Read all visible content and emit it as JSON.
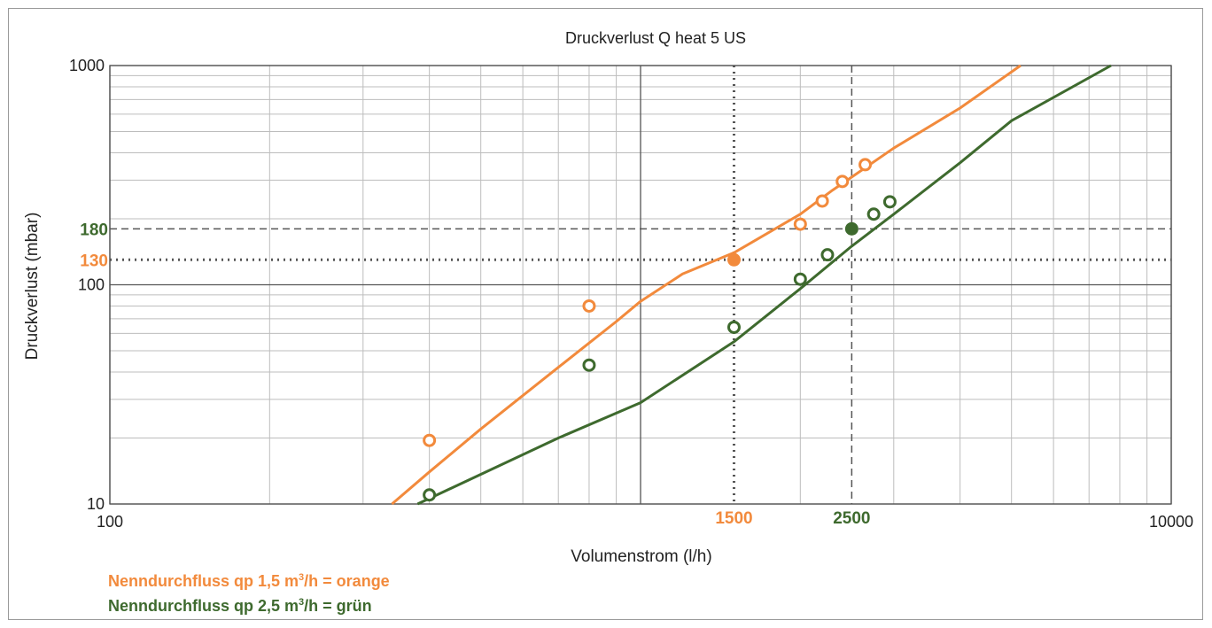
{
  "chart_data": {
    "type": "line",
    "title": "Druckverlust Q heat 5 US",
    "xlabel": "Volumenstrom (l/h)",
    "ylabel": "Druckverlust (mbar)",
    "x_scale": "log",
    "y_scale": "log",
    "xlim": [
      100,
      10000
    ],
    "ylim": [
      10,
      1000
    ],
    "x_ticks": [
      "100",
      "10000"
    ],
    "y_ticks": [
      "10",
      "100",
      "1000"
    ],
    "grid": true,
    "series": [
      {
        "name": "Nenndurchfluss qp 1,5 m³/h",
        "color": "#f28a3c",
        "curve_x": [
          340,
          400,
          500,
          700,
          900,
          1000,
          1200,
          1500,
          2000,
          2300,
          2500,
          3000,
          4000,
          5200
        ],
        "curve_y": [
          10,
          14,
          22,
          42,
          68,
          84,
          112,
          140,
          210,
          270,
          310,
          420,
          640,
          1000
        ],
        "points_x": [
          400,
          800,
          1500,
          2000,
          2200,
          2400,
          2650
        ],
        "points_y": [
          19.5,
          80,
          130,
          189,
          241,
          296,
          353
        ]
      },
      {
        "name": "Nenndurchfluss qp 2,5 m³/h",
        "color": "#3e6a2e",
        "curve_x": [
          380,
          700,
          1000,
          1500,
          2000,
          2500,
          3000,
          4000,
          5000,
          7700
        ],
        "curve_y": [
          10,
          20,
          29,
          55,
          96,
          150,
          210,
          360,
          560,
          1000
        ],
        "points_x": [
          400,
          800,
          1500,
          2000,
          2250,
          2500,
          2750,
          2950
        ],
        "points_y": [
          11,
          43,
          64,
          106,
          137,
          180,
          210,
          239
        ]
      }
    ],
    "reference_lines": {
      "x": [
        {
          "label": "1500",
          "value": 1500,
          "color": "#f28a3c",
          "style": "dotted"
        },
        {
          "label": "2500",
          "value": 2500,
          "color": "#3e6a2e",
          "style": "dashed"
        }
      ],
      "y": [
        {
          "label": "180",
          "value": 180,
          "color": "#3e6a2e",
          "style": "dashed"
        },
        {
          "label": "130",
          "value": 130,
          "color": "#f28a3c",
          "style": "dotted"
        }
      ]
    },
    "legend": [
      {
        "text": "Nenndurchfluss qp 1,5 m",
        "sup": "3",
        "suffix": "/h = orange",
        "color": "#f28a3c"
      },
      {
        "text": "Nenndurchfluss qp 2,5 m",
        "sup": "3",
        "suffix": "/h = grün",
        "color": "#3e6a2e"
      }
    ]
  }
}
